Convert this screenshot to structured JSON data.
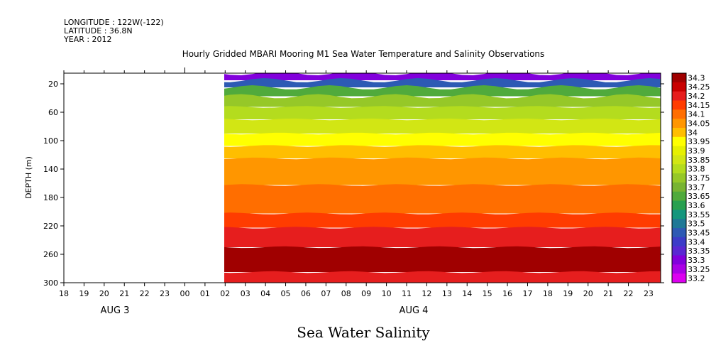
{
  "header": {
    "longitude": "LONGITUDE : 122W(-122)",
    "latitude": "LATITUDE : 36.8N",
    "year": "YEAR : 2012"
  },
  "chart_data": {
    "type": "heatmap",
    "title": "Hourly Gridded MBARI Mooring M1 Sea Water Temperature and Salinity Observations",
    "xlabel": "Sea Water Salinity",
    "ylabel": "DEPTH (m)",
    "x_hour_ticks": [
      "18",
      "19",
      "20",
      "21",
      "22",
      "23",
      "00",
      "01",
      "02",
      "03",
      "04",
      "05",
      "06",
      "07",
      "08",
      "09",
      "10",
      "11",
      "12",
      "13",
      "14",
      "15",
      "16",
      "17",
      "18",
      "19",
      "20",
      "21",
      "22",
      "23"
    ],
    "x_date_labels": [
      "AUG  3",
      "AUG  4"
    ],
    "y_ticks": [
      20,
      60,
      100,
      140,
      180,
      220,
      260,
      300
    ],
    "ylim": [
      300,
      5
    ],
    "data_start_hour_index": 8,
    "colorbar_levels": [
      "34.3",
      "34.25",
      "34.2",
      "34.15",
      "34.1",
      "34.05",
      "34",
      "33.95",
      "33.9",
      "33.85",
      "33.8",
      "33.75",
      "33.7",
      "33.65",
      "33.6",
      "33.55",
      "33.5",
      "33.45",
      "33.4",
      "33.35",
      "33.3",
      "33.25",
      "33.2"
    ],
    "colorbar_colors": [
      "#a00000",
      "#c80000",
      "#e61e1e",
      "#ff3c00",
      "#ff6e00",
      "#ff9600",
      "#ffbe00",
      "#ffff00",
      "#e6f000",
      "#d2e614",
      "#b4dc1e",
      "#96c828",
      "#78b432",
      "#50aa3c",
      "#28a050",
      "#14967d",
      "#1e7896",
      "#2d5ab4",
      "#3c3cc8",
      "#5a28d2",
      "#8200dc",
      "#aa00e6",
      "#dc00f0"
    ],
    "depth_profile": [
      {
        "depth": 10,
        "salinity": 33.3
      },
      {
        "depth": 20,
        "salinity": 33.45
      },
      {
        "depth": 30,
        "salinity": 33.65
      },
      {
        "depth": 45,
        "salinity": 33.75
      },
      {
        "depth": 60,
        "salinity": 33.8
      },
      {
        "depth": 80,
        "salinity": 33.85
      },
      {
        "depth": 100,
        "salinity": 33.95
      },
      {
        "depth": 115,
        "salinity": 34.0
      },
      {
        "depth": 135,
        "salinity": 34.05
      },
      {
        "depth": 190,
        "salinity": 34.1
      },
      {
        "depth": 215,
        "salinity": 34.15
      },
      {
        "depth": 230,
        "salinity": 34.2
      },
      {
        "depth": 270,
        "salinity": 34.3
      },
      {
        "depth": 300,
        "salinity": 34.2
      }
    ]
  }
}
